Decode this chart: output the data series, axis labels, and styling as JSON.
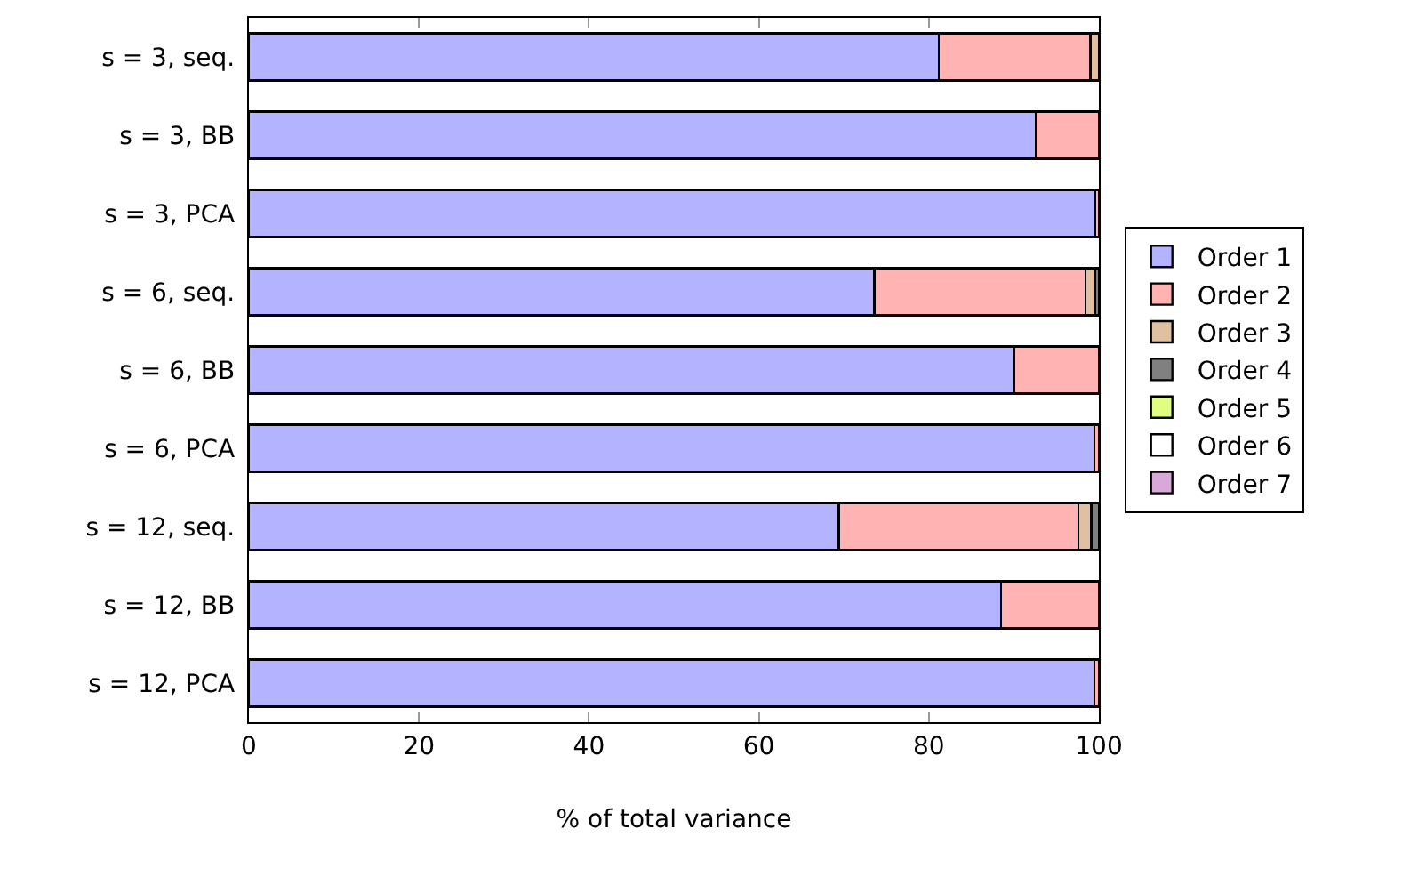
{
  "chart_data": {
    "type": "bar",
    "orientation": "horizontal",
    "stacked": true,
    "xlabel": "% of total variance",
    "categories": [
      "s = 3, seq.",
      "s = 3, BB",
      "s = 3, PCA",
      "s = 6, seq.",
      "s = 6, BB",
      "s = 6, PCA",
      "s = 12, seq.",
      "s = 12, BB",
      "s = 12, PCA"
    ],
    "series": [
      {
        "name": "Order 1",
        "color": "#b3b3ff",
        "values": [
          81.2,
          92.6,
          99.6,
          73.6,
          90.0,
          99.5,
          69.4,
          88.5,
          99.5
        ]
      },
      {
        "name": "Order 2",
        "color": "#ffb3b3",
        "values": [
          17.8,
          7.4,
          0.4,
          24.8,
          10.0,
          0.5,
          28.2,
          11.5,
          0.5
        ]
      },
      {
        "name": "Order 3",
        "color": "#dfc0a0",
        "values": [
          1.0,
          0,
          0,
          1.2,
          0,
          0,
          1.5,
          0,
          0
        ]
      },
      {
        "name": "Order 4",
        "color": "#808080",
        "values": [
          0,
          0,
          0,
          0.4,
          0,
          0,
          0.9,
          0,
          0
        ]
      },
      {
        "name": "Order 5",
        "color": "#e0ff80",
        "values": [
          0,
          0,
          0,
          0,
          0,
          0,
          0,
          0,
          0
        ]
      },
      {
        "name": "Order 6",
        "color": "#ffffff",
        "values": [
          0,
          0,
          0,
          0,
          0,
          0,
          0,
          0,
          0
        ]
      },
      {
        "name": "Order 7",
        "color": "#d8a8d8",
        "values": [
          0,
          0,
          0,
          0,
          0,
          0,
          0,
          0,
          0
        ]
      }
    ],
    "xlim": [
      0,
      100
    ],
    "xticks": [
      0,
      20,
      40,
      60,
      80,
      100
    ],
    "grid": false,
    "legend": "right"
  }
}
